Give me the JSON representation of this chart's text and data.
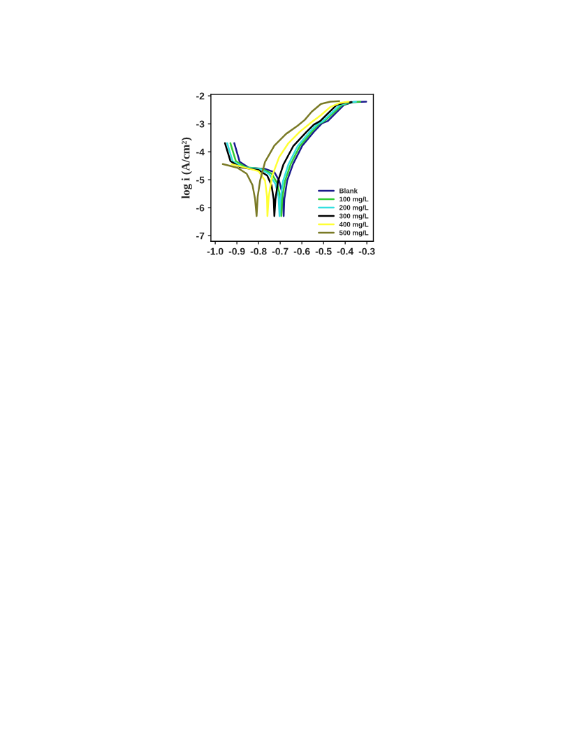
{
  "chart_data": {
    "type": "line",
    "ylabel": "log i (A/cm²)",
    "xlim": [
      -1.02,
      -0.27
    ],
    "ylim": [
      -7.2,
      -1.95
    ],
    "xticks": [
      {
        "value": -1.0,
        "label": "-1.0"
      },
      {
        "value": -0.9,
        "label": "-0.9"
      },
      {
        "value": -0.8,
        "label": "-0.8"
      },
      {
        "value": -0.7,
        "label": "-0.7"
      },
      {
        "value": -0.6,
        "label": "-0.6"
      },
      {
        "value": -0.5,
        "label": "-0.5"
      },
      {
        "value": -0.4,
        "label": "-0.4"
      },
      {
        "value": -0.3,
        "label": "-0.3"
      }
    ],
    "yticks": [
      {
        "value": -2,
        "label": "-2"
      },
      {
        "value": -3,
        "label": "-3"
      },
      {
        "value": -4,
        "label": "-4"
      },
      {
        "value": -5,
        "label": "-5"
      },
      {
        "value": -6,
        "label": "-6"
      },
      {
        "value": -7,
        "label": "-7"
      }
    ],
    "grid": false,
    "legend": "bottom right",
    "marker": "none",
    "line_style": "solid",
    "series": [
      {
        "name": "Blank",
        "color": "#1a1a8c",
        "x": [
          -0.912,
          -0.887,
          -0.845,
          -0.77,
          -0.727,
          -0.705,
          -0.689,
          -0.684,
          -0.681,
          -0.668,
          -0.641,
          -0.598,
          -0.544,
          -0.507,
          -0.48,
          -0.448,
          -0.405,
          -0.362,
          -0.303
        ],
        "values": [
          -3.69,
          -4.36,
          -4.57,
          -4.61,
          -4.73,
          -5.03,
          -5.53,
          -6.3,
          -5.69,
          -5.03,
          -4.44,
          -3.78,
          -3.28,
          -2.98,
          -2.9,
          -2.65,
          -2.32,
          -2.22,
          -2.21
        ]
      },
      {
        "name": "100 mg/L",
        "color": "#33cc33",
        "x": [
          -0.93,
          -0.905,
          -0.86,
          -0.78,
          -0.74,
          -0.715,
          -0.7,
          -0.695,
          -0.691,
          -0.678,
          -0.652,
          -0.61,
          -0.556,
          -0.52,
          -0.495,
          -0.46,
          -0.415,
          -0.37,
          -0.33
        ],
        "values": [
          -3.69,
          -4.33,
          -4.55,
          -4.62,
          -4.78,
          -5.1,
          -5.6,
          -6.3,
          -5.7,
          -5.05,
          -4.45,
          -3.8,
          -3.3,
          -3.0,
          -2.9,
          -2.65,
          -2.33,
          -2.23,
          -2.21
        ]
      },
      {
        "name": "200 mg/L",
        "color": "#33e0e0",
        "x": [
          -0.945,
          -0.92,
          -0.875,
          -0.79,
          -0.75,
          -0.722,
          -0.708,
          -0.703,
          -0.699,
          -0.687,
          -0.662,
          -0.62,
          -0.566,
          -0.53,
          -0.505,
          -0.47,
          -0.425,
          -0.38,
          -0.35
        ],
        "values": [
          -3.69,
          -4.33,
          -4.55,
          -4.62,
          -4.8,
          -5.15,
          -5.6,
          -6.3,
          -5.7,
          -5.05,
          -4.45,
          -3.8,
          -3.3,
          -3.02,
          -2.92,
          -2.66,
          -2.33,
          -2.23,
          -2.21
        ]
      },
      {
        "name": "300 mg/L",
        "color": "#000000",
        "x": [
          -0.955,
          -0.93,
          -0.885,
          -0.8,
          -0.76,
          -0.74,
          -0.73,
          -0.727,
          -0.722,
          -0.71,
          -0.685,
          -0.64,
          -0.58,
          -0.545,
          -0.515,
          -0.48,
          -0.44,
          -0.4,
          -0.37
        ],
        "values": [
          -3.69,
          -4.33,
          -4.55,
          -4.65,
          -4.85,
          -5.2,
          -5.7,
          -6.3,
          -5.7,
          -5.05,
          -4.45,
          -3.8,
          -3.3,
          -3.03,
          -2.9,
          -2.63,
          -2.33,
          -2.24,
          -2.22
        ]
      },
      {
        "name": "400 mg/L",
        "color": "#ffff33",
        "x": [
          -0.925,
          -0.8,
          -0.77,
          -0.761,
          -0.759,
          -0.753,
          -0.737,
          -0.705,
          -0.662,
          -0.609,
          -0.555,
          -0.512,
          -0.469,
          -0.427,
          -0.384
        ],
        "values": [
          -4.44,
          -4.69,
          -5.03,
          -5.6,
          -6.3,
          -5.6,
          -4.86,
          -4.19,
          -3.69,
          -3.28,
          -2.94,
          -2.69,
          -2.4,
          -2.26,
          -2.21
        ]
      },
      {
        "name": "500 mg/L",
        "color": "#7a7a26",
        "x": [
          -0.965,
          -0.898,
          -0.855,
          -0.828,
          -0.816,
          -0.809,
          -0.804,
          -0.793,
          -0.77,
          -0.727,
          -0.673,
          -0.62,
          -0.587,
          -0.555,
          -0.512,
          -0.469,
          -0.427
        ],
        "values": [
          -4.44,
          -4.57,
          -4.78,
          -5.19,
          -5.69,
          -6.3,
          -5.61,
          -5.03,
          -4.36,
          -3.78,
          -3.36,
          -3.07,
          -2.86,
          -2.57,
          -2.29,
          -2.21,
          -2.19
        ]
      }
    ]
  }
}
